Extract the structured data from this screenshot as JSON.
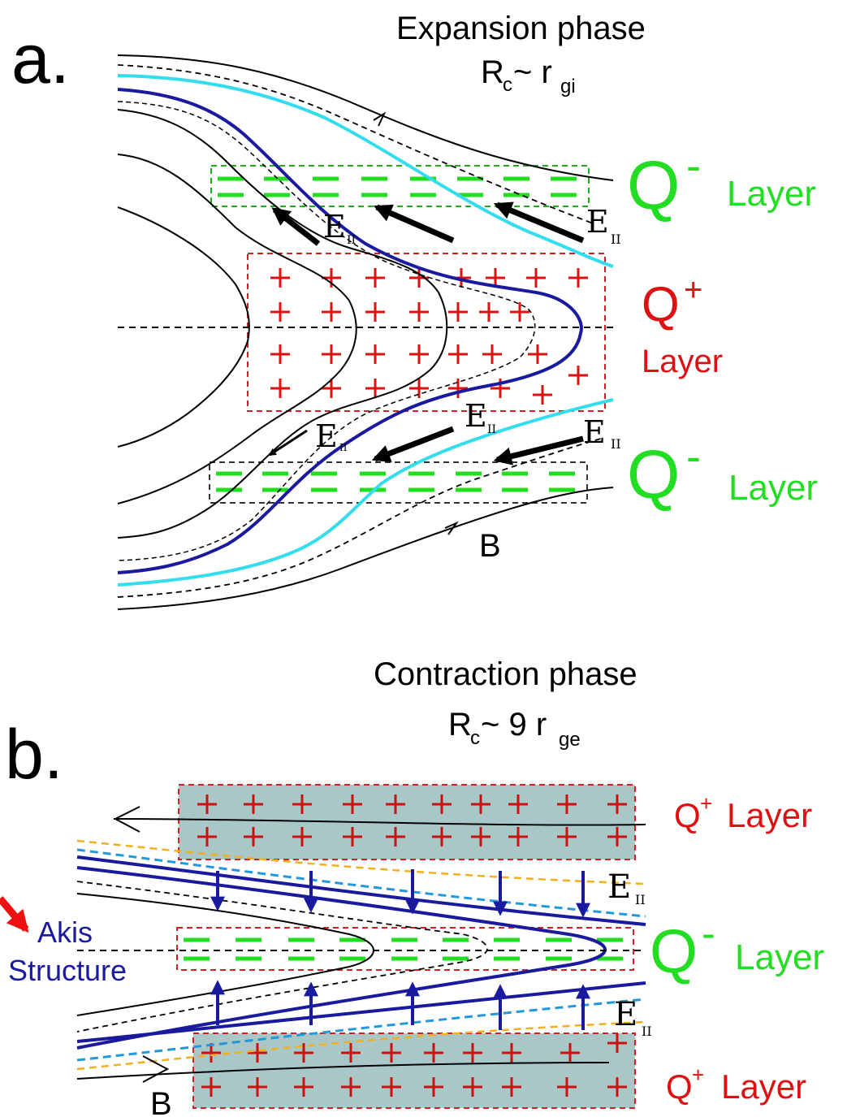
{
  "panel_a": {
    "letter": "a.",
    "title": "Expansion phase",
    "radius_main": "R",
    "radius_sub_c": "c",
    "radius_mid": "~ r",
    "radius_sub": "gi",
    "q_minus_top": "Q",
    "q_minus_top_sup": "-",
    "q_minus_top_layer": "Layer",
    "q_plus": "Q",
    "q_plus_sup": "+",
    "q_plus_layer": "Layer",
    "q_minus_bottom": "Q",
    "q_minus_bottom_sup": "-",
    "q_minus_bottom_layer": "Layer",
    "e_label": "E",
    "e_sub": "II",
    "b_label": "B"
  },
  "panel_b": {
    "letter": "b.",
    "title": "Contraction phase",
    "radius_main": "R",
    "radius_sub_c": "c",
    "radius_mid": "~ 9 r",
    "radius_sub": "ge",
    "q_plus_top": "Q",
    "q_plus_top_sup": "+",
    "q_plus_top_layer": "Layer",
    "q_minus": "Q",
    "q_minus_sup": "-",
    "q_minus_layer": "Layer",
    "q_plus_bottom": "Q",
    "q_plus_bottom_sup": "+",
    "q_plus_bottom_layer": "Layer",
    "e_label": "E",
    "e_sub": "II",
    "b_label": "B",
    "akis_line1": "Akis",
    "akis_line2": "Structure"
  },
  "colors": {
    "green": "#22dd22",
    "red": "#dd1111",
    "dark_blue": "#1a1a9e",
    "cyan": "#33ddee",
    "light_blue_dash": "#2299dd",
    "orange_dash": "#f0b020",
    "box_fill": "#a9c7c7"
  }
}
